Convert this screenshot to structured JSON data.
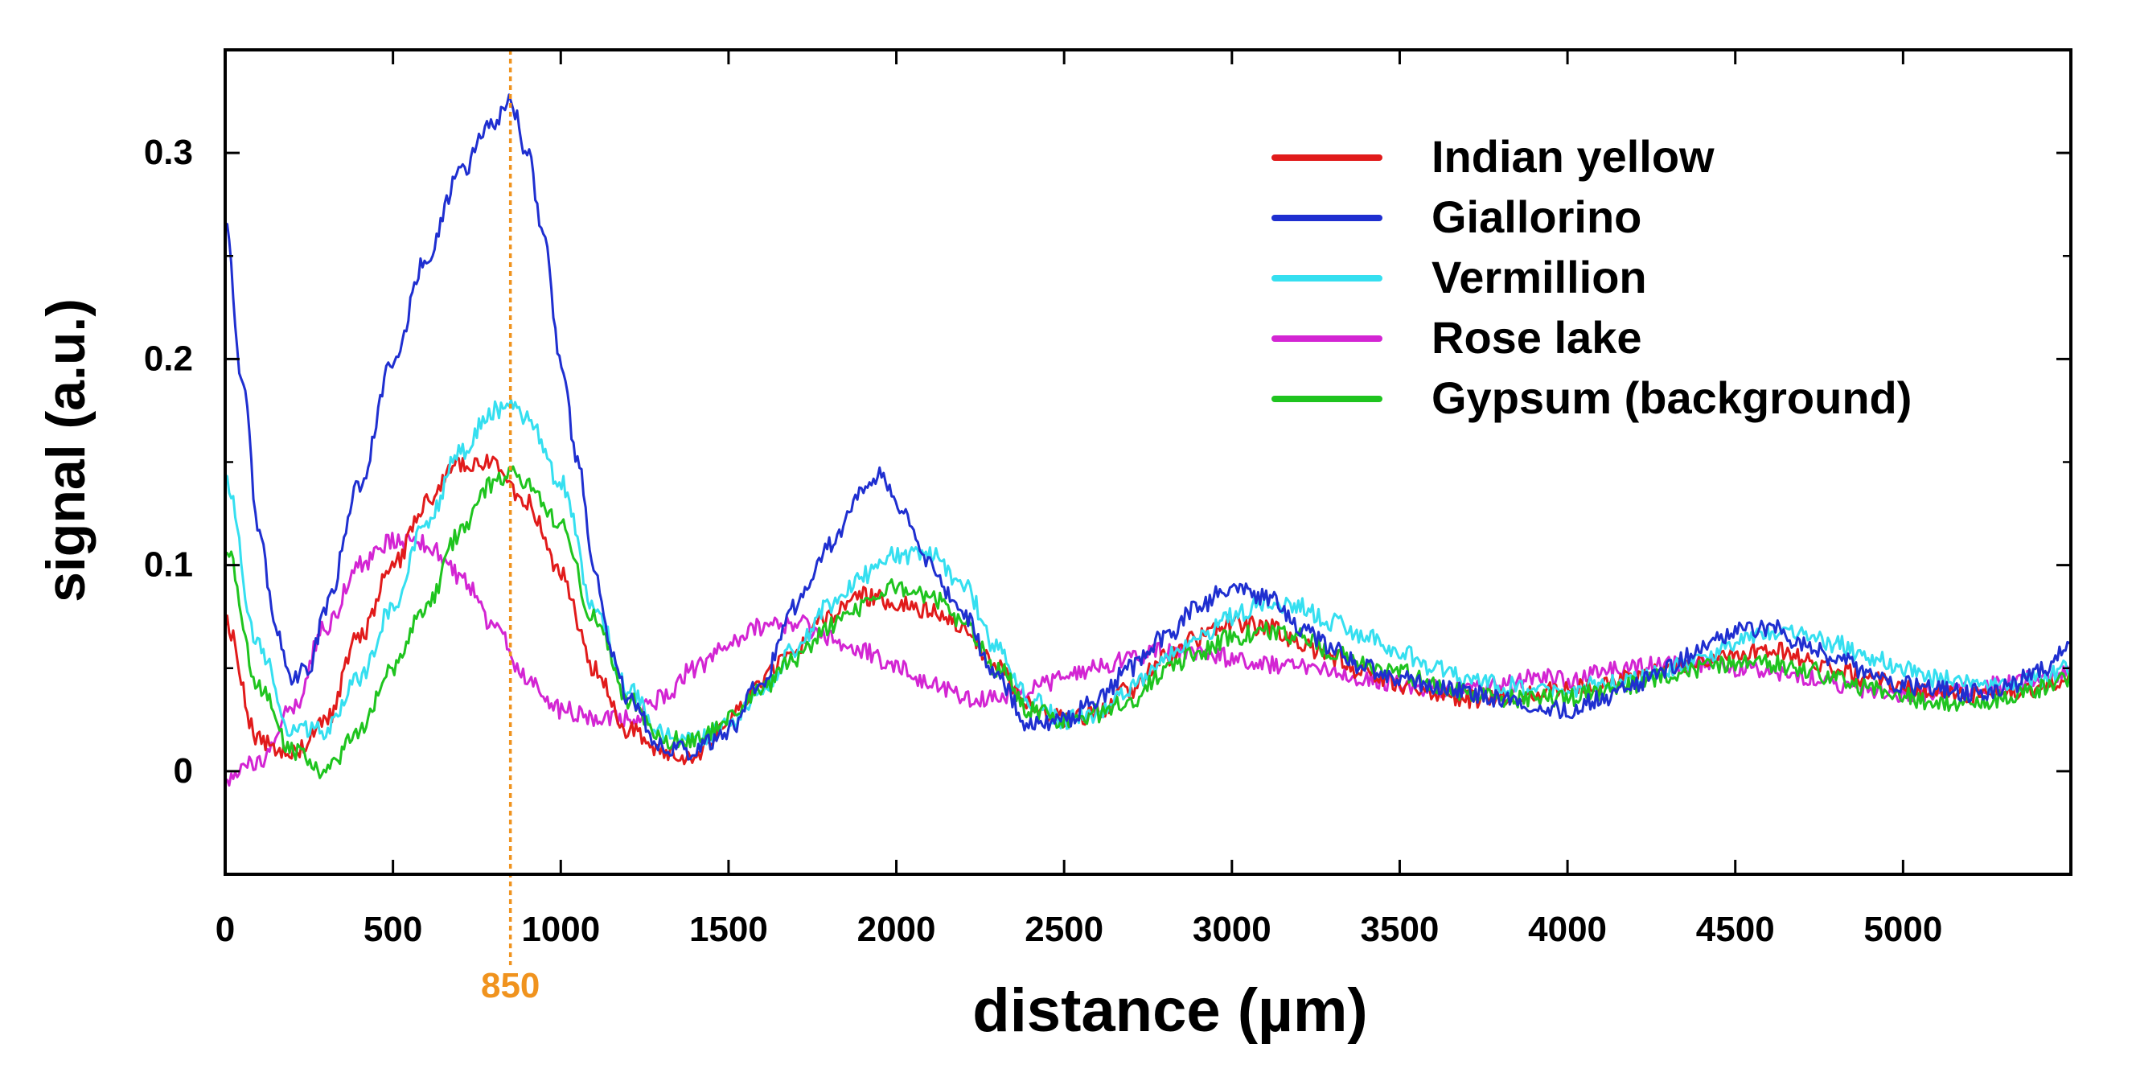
{
  "chart_data": {
    "type": "line",
    "title": "",
    "xlabel": "distance (µm)",
    "ylabel": "signal (a.u.)",
    "xlim": [
      0,
      5500
    ],
    "ylim": [
      -0.05,
      0.35
    ],
    "x_ticks": [
      0,
      500,
      1000,
      1500,
      2000,
      2500,
      3000,
      3500,
      4000,
      4500,
      5000
    ],
    "x_tick_labels": [
      "0",
      "500",
      "1000",
      "1500",
      "2000",
      "2500",
      "3000",
      "3500",
      "4000",
      "4500",
      "5000"
    ],
    "y_ticks": [
      0,
      0.1,
      0.2,
      0.3
    ],
    "y_tick_labels": [
      "0",
      "0.1",
      "0.2",
      "0.3"
    ],
    "grid": false,
    "legend_position": "top-right",
    "reference_line": {
      "x": 850,
      "label": "850",
      "color": "#f0931e"
    },
    "series": [
      {
        "name": "Indian yellow",
        "color": "#e11b1b",
        "points": [
          [
            0,
            0.072
          ],
          [
            100,
            0.015
          ],
          [
            200,
            0.008
          ],
          [
            300,
            0.025
          ],
          [
            400,
            0.065
          ],
          [
            500,
            0.1
          ],
          [
            600,
            0.13
          ],
          [
            700,
            0.15
          ],
          [
            800,
            0.15
          ],
          [
            900,
            0.13
          ],
          [
            1000,
            0.095
          ],
          [
            1100,
            0.05
          ],
          [
            1200,
            0.02
          ],
          [
            1300,
            0.008
          ],
          [
            1400,
            0.008
          ],
          [
            1500,
            0.025
          ],
          [
            1600,
            0.045
          ],
          [
            1700,
            0.06
          ],
          [
            1800,
            0.075
          ],
          [
            1900,
            0.085
          ],
          [
            2000,
            0.082
          ],
          [
            2100,
            0.078
          ],
          [
            2200,
            0.07
          ],
          [
            2300,
            0.05
          ],
          [
            2400,
            0.032
          ],
          [
            2500,
            0.025
          ],
          [
            2600,
            0.028
          ],
          [
            2700,
            0.04
          ],
          [
            2800,
            0.055
          ],
          [
            2900,
            0.065
          ],
          [
            3000,
            0.072
          ],
          [
            3100,
            0.07
          ],
          [
            3200,
            0.062
          ],
          [
            3300,
            0.055
          ],
          [
            3400,
            0.048
          ],
          [
            3500,
            0.042
          ],
          [
            3600,
            0.038
          ],
          [
            3700,
            0.035
          ],
          [
            3800,
            0.035
          ],
          [
            3900,
            0.038
          ],
          [
            4000,
            0.04
          ],
          [
            4100,
            0.042
          ],
          [
            4200,
            0.045
          ],
          [
            4300,
            0.05
          ],
          [
            4400,
            0.055
          ],
          [
            4500,
            0.058
          ],
          [
            4600,
            0.06
          ],
          [
            4700,
            0.055
          ],
          [
            4800,
            0.05
          ],
          [
            4900,
            0.045
          ],
          [
            5000,
            0.04
          ],
          [
            5100,
            0.038
          ],
          [
            5200,
            0.036
          ],
          [
            5300,
            0.038
          ],
          [
            5400,
            0.04
          ],
          [
            5500,
            0.045
          ]
        ]
      },
      {
        "name": "Giallorino",
        "color": "#1f2fd0",
        "points": [
          [
            0,
            0.27
          ],
          [
            50,
            0.19
          ],
          [
            100,
            0.12
          ],
          [
            150,
            0.07
          ],
          [
            200,
            0.045
          ],
          [
            250,
            0.05
          ],
          [
            300,
            0.08
          ],
          [
            400,
            0.14
          ],
          [
            500,
            0.2
          ],
          [
            600,
            0.25
          ],
          [
            700,
            0.29
          ],
          [
            800,
            0.315
          ],
          [
            850,
            0.325
          ],
          [
            900,
            0.3
          ],
          [
            950,
            0.26
          ],
          [
            1000,
            0.2
          ],
          [
            1050,
            0.15
          ],
          [
            1100,
            0.1
          ],
          [
            1150,
            0.06
          ],
          [
            1200,
            0.035
          ],
          [
            1300,
            0.012
          ],
          [
            1400,
            0.01
          ],
          [
            1500,
            0.02
          ],
          [
            1600,
            0.045
          ],
          [
            1700,
            0.08
          ],
          [
            1800,
            0.11
          ],
          [
            1900,
            0.135
          ],
          [
            1950,
            0.145
          ],
          [
            2000,
            0.13
          ],
          [
            2100,
            0.1
          ],
          [
            2200,
            0.075
          ],
          [
            2300,
            0.045
          ],
          [
            2400,
            0.022
          ],
          [
            2500,
            0.025
          ],
          [
            2600,
            0.035
          ],
          [
            2700,
            0.05
          ],
          [
            2800,
            0.065
          ],
          [
            2900,
            0.08
          ],
          [
            3000,
            0.09
          ],
          [
            3100,
            0.085
          ],
          [
            3200,
            0.07
          ],
          [
            3300,
            0.06
          ],
          [
            3400,
            0.05
          ],
          [
            3500,
            0.045
          ],
          [
            3600,
            0.042
          ],
          [
            3700,
            0.038
          ],
          [
            3800,
            0.035
          ],
          [
            3900,
            0.032
          ],
          [
            4000,
            0.03
          ],
          [
            4100,
            0.035
          ],
          [
            4200,
            0.042
          ],
          [
            4300,
            0.05
          ],
          [
            4400,
            0.06
          ],
          [
            4500,
            0.068
          ],
          [
            4600,
            0.07
          ],
          [
            4700,
            0.062
          ],
          [
            4800,
            0.055
          ],
          [
            4900,
            0.048
          ],
          [
            5000,
            0.042
          ],
          [
            5100,
            0.04
          ],
          [
            5200,
            0.038
          ],
          [
            5300,
            0.04
          ],
          [
            5400,
            0.048
          ],
          [
            5500,
            0.06
          ]
        ]
      },
      {
        "name": "Vermillion",
        "color": "#35dff0",
        "points": [
          [
            0,
            0.14
          ],
          [
            100,
            0.06
          ],
          [
            200,
            0.02
          ],
          [
            300,
            0.02
          ],
          [
            400,
            0.045
          ],
          [
            500,
            0.08
          ],
          [
            600,
            0.12
          ],
          [
            700,
            0.155
          ],
          [
            800,
            0.175
          ],
          [
            850,
            0.178
          ],
          [
            900,
            0.17
          ],
          [
            1000,
            0.14
          ],
          [
            1100,
            0.08
          ],
          [
            1200,
            0.04
          ],
          [
            1300,
            0.018
          ],
          [
            1400,
            0.015
          ],
          [
            1500,
            0.022
          ],
          [
            1600,
            0.04
          ],
          [
            1700,
            0.06
          ],
          [
            1800,
            0.08
          ],
          [
            1900,
            0.095
          ],
          [
            2000,
            0.105
          ],
          [
            2100,
            0.105
          ],
          [
            2200,
            0.09
          ],
          [
            2300,
            0.06
          ],
          [
            2400,
            0.035
          ],
          [
            2500,
            0.025
          ],
          [
            2600,
            0.028
          ],
          [
            2700,
            0.04
          ],
          [
            2800,
            0.055
          ],
          [
            2900,
            0.065
          ],
          [
            3000,
            0.075
          ],
          [
            3100,
            0.082
          ],
          [
            3200,
            0.08
          ],
          [
            3300,
            0.072
          ],
          [
            3400,
            0.065
          ],
          [
            3500,
            0.058
          ],
          [
            3600,
            0.05
          ],
          [
            3700,
            0.045
          ],
          [
            3800,
            0.042
          ],
          [
            3900,
            0.04
          ],
          [
            4000,
            0.04
          ],
          [
            4100,
            0.042
          ],
          [
            4200,
            0.045
          ],
          [
            4300,
            0.05
          ],
          [
            4400,
            0.055
          ],
          [
            4500,
            0.062
          ],
          [
            4600,
            0.068
          ],
          [
            4700,
            0.068
          ],
          [
            4800,
            0.062
          ],
          [
            4900,
            0.055
          ],
          [
            5000,
            0.05
          ],
          [
            5100,
            0.045
          ],
          [
            5200,
            0.042
          ],
          [
            5300,
            0.042
          ],
          [
            5400,
            0.045
          ],
          [
            5500,
            0.05
          ]
        ]
      },
      {
        "name": "Rose lake",
        "color": "#d325d3",
        "points": [
          [
            0,
            -0.005
          ],
          [
            100,
            0.005
          ],
          [
            200,
            0.03
          ],
          [
            300,
            0.07
          ],
          [
            400,
            0.1
          ],
          [
            500,
            0.112
          ],
          [
            600,
            0.11
          ],
          [
            700,
            0.095
          ],
          [
            800,
            0.07
          ],
          [
            900,
            0.045
          ],
          [
            1000,
            0.03
          ],
          [
            1100,
            0.025
          ],
          [
            1200,
            0.025
          ],
          [
            1300,
            0.035
          ],
          [
            1400,
            0.05
          ],
          [
            1500,
            0.062
          ],
          [
            1600,
            0.07
          ],
          [
            1700,
            0.072
          ],
          [
            1800,
            0.065
          ],
          [
            1900,
            0.058
          ],
          [
            2000,
            0.05
          ],
          [
            2100,
            0.042
          ],
          [
            2200,
            0.036
          ],
          [
            2300,
            0.035
          ],
          [
            2400,
            0.04
          ],
          [
            2500,
            0.045
          ],
          [
            2600,
            0.05
          ],
          [
            2700,
            0.055
          ],
          [
            2800,
            0.058
          ],
          [
            2900,
            0.058
          ],
          [
            3000,
            0.055
          ],
          [
            3100,
            0.052
          ],
          [
            3200,
            0.05
          ],
          [
            3300,
            0.048
          ],
          [
            3400,
            0.045
          ],
          [
            3500,
            0.042
          ],
          [
            3600,
            0.04
          ],
          [
            3700,
            0.04
          ],
          [
            3800,
            0.042
          ],
          [
            3900,
            0.045
          ],
          [
            4000,
            0.045
          ],
          [
            4100,
            0.048
          ],
          [
            4200,
            0.05
          ],
          [
            4300,
            0.052
          ],
          [
            4400,
            0.052
          ],
          [
            4500,
            0.05
          ],
          [
            4600,
            0.048
          ],
          [
            4700,
            0.045
          ],
          [
            4800,
            0.042
          ],
          [
            4900,
            0.04
          ],
          [
            5000,
            0.038
          ],
          [
            5100,
            0.038
          ],
          [
            5200,
            0.04
          ],
          [
            5300,
            0.042
          ],
          [
            5400,
            0.045
          ],
          [
            5500,
            0.048
          ]
        ]
      },
      {
        "name": "Gypsum (background)",
        "color": "#1fc41f",
        "points": [
          [
            0,
            0.11
          ],
          [
            100,
            0.04
          ],
          [
            200,
            0.01
          ],
          [
            300,
            0.0
          ],
          [
            400,
            0.02
          ],
          [
            500,
            0.05
          ],
          [
            600,
            0.08
          ],
          [
            700,
            0.115
          ],
          [
            800,
            0.14
          ],
          [
            850,
            0.145
          ],
          [
            900,
            0.14
          ],
          [
            1000,
            0.12
          ],
          [
            1100,
            0.075
          ],
          [
            1200,
            0.035
          ],
          [
            1300,
            0.015
          ],
          [
            1400,
            0.015
          ],
          [
            1500,
            0.025
          ],
          [
            1600,
            0.04
          ],
          [
            1700,
            0.055
          ],
          [
            1800,
            0.07
          ],
          [
            1900,
            0.08
          ],
          [
            2000,
            0.09
          ],
          [
            2100,
            0.085
          ],
          [
            2200,
            0.072
          ],
          [
            2300,
            0.05
          ],
          [
            2400,
            0.03
          ],
          [
            2500,
            0.025
          ],
          [
            2600,
            0.028
          ],
          [
            2700,
            0.035
          ],
          [
            2800,
            0.048
          ],
          [
            2900,
            0.058
          ],
          [
            3000,
            0.065
          ],
          [
            3100,
            0.068
          ],
          [
            3200,
            0.065
          ],
          [
            3300,
            0.058
          ],
          [
            3400,
            0.052
          ],
          [
            3500,
            0.048
          ],
          [
            3600,
            0.042
          ],
          [
            3700,
            0.038
          ],
          [
            3800,
            0.035
          ],
          [
            3900,
            0.035
          ],
          [
            4000,
            0.036
          ],
          [
            4100,
            0.038
          ],
          [
            4200,
            0.042
          ],
          [
            4300,
            0.046
          ],
          [
            4400,
            0.05
          ],
          [
            4500,
            0.052
          ],
          [
            4600,
            0.052
          ],
          [
            4700,
            0.05
          ],
          [
            4800,
            0.045
          ],
          [
            4900,
            0.04
          ],
          [
            5000,
            0.036
          ],
          [
            5100,
            0.034
          ],
          [
            5200,
            0.032
          ],
          [
            5300,
            0.035
          ],
          [
            5400,
            0.04
          ],
          [
            5500,
            0.045
          ]
        ]
      }
    ]
  }
}
